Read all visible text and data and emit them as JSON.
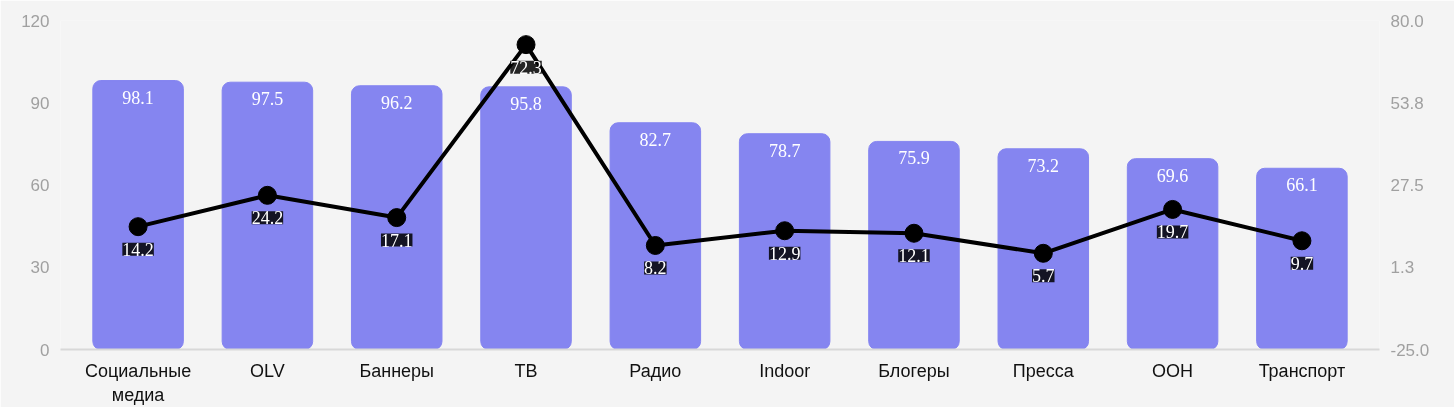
{
  "chart_data": {
    "type": "bar",
    "categories": [
      "Социальные\nмедиа",
      "OLV",
      "Баннеры",
      "ТВ",
      "Радио",
      "Indoor",
      "Блогеры",
      "Пресса",
      "OOH",
      "Транспорт"
    ],
    "series": [
      {
        "color": "#8585f0",
        "values": [
          98.1,
          97.5,
          96.2,
          95.8,
          82.7,
          78.7,
          75.9,
          73.2,
          69.6,
          66.1
        ]
      },
      {
        "type": "line",
        "axis": "y2",
        "color": "#000000",
        "marker": "circle",
        "values": [
          14.2,
          24.2,
          17.1,
          72.3,
          8.2,
          12.9,
          12.1,
          5.7,
          19.7,
          9.7
        ]
      }
    ],
    "ylim": [
      0,
      120
    ],
    "yticks": [
      0,
      30,
      60,
      90,
      120
    ],
    "y2lim": [
      -25,
      80
    ],
    "y2ticks": [
      {
        "value": -25,
        "label": "-25.0"
      },
      {
        "value": 1.25,
        "label": "1.3"
      },
      {
        "value": 27.5,
        "label": "27.5"
      },
      {
        "value": 53.75,
        "label": "53.8"
      },
      {
        "value": 80,
        "label": "80.0"
      }
    ],
    "data_labels": true,
    "grid": false,
    "line_style": "solid"
  }
}
